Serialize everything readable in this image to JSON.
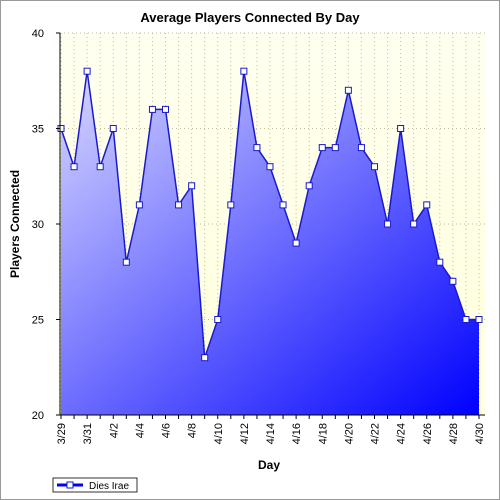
{
  "chart_data": {
    "type": "area",
    "title": "Average Players Connected By Day",
    "xlabel": "Day",
    "ylabel": "Players Connected",
    "ylim": [
      20,
      40
    ],
    "yticks": [
      20,
      25,
      30,
      35,
      40
    ],
    "grid": true,
    "legend_position": "bottom-left",
    "x": [
      "3/29",
      "3/30",
      "3/31",
      "4/1",
      "4/2",
      "4/3",
      "4/4",
      "4/5",
      "4/6",
      "4/7",
      "4/8",
      "4/9",
      "4/10",
      "4/11",
      "4/12",
      "4/13",
      "4/14",
      "4/15",
      "4/16",
      "4/17",
      "4/18",
      "4/19",
      "4/20",
      "4/21",
      "4/22",
      "4/23",
      "4/24",
      "4/25",
      "4/26",
      "4/27",
      "4/28",
      "4/29",
      "4/30"
    ],
    "xtick_labels": [
      "3/29",
      "3/31",
      "4/2",
      "4/4",
      "4/6",
      "4/8",
      "4/10",
      "4/12",
      "4/14",
      "4/16",
      "4/18",
      "4/20",
      "4/22",
      "4/24",
      "4/26",
      "4/28",
      "4/30"
    ],
    "series": [
      {
        "name": "Dies Irae",
        "values": [
          35,
          33,
          38,
          33,
          35,
          28,
          31,
          36,
          36,
          31,
          32,
          23,
          25,
          31,
          38,
          34,
          33,
          31,
          29,
          32,
          34,
          34,
          37,
          34,
          33,
          30,
          35,
          30,
          31,
          28,
          27,
          25,
          25
        ]
      }
    ],
    "colors": {
      "plot_background_top": "#fffff0",
      "plot_background_bottom": "#ffffdc",
      "line": "#1a1acd",
      "area_light": "#d8d8ff",
      "area_dark": "#0000ff",
      "grid": "#bdbd9a"
    }
  }
}
